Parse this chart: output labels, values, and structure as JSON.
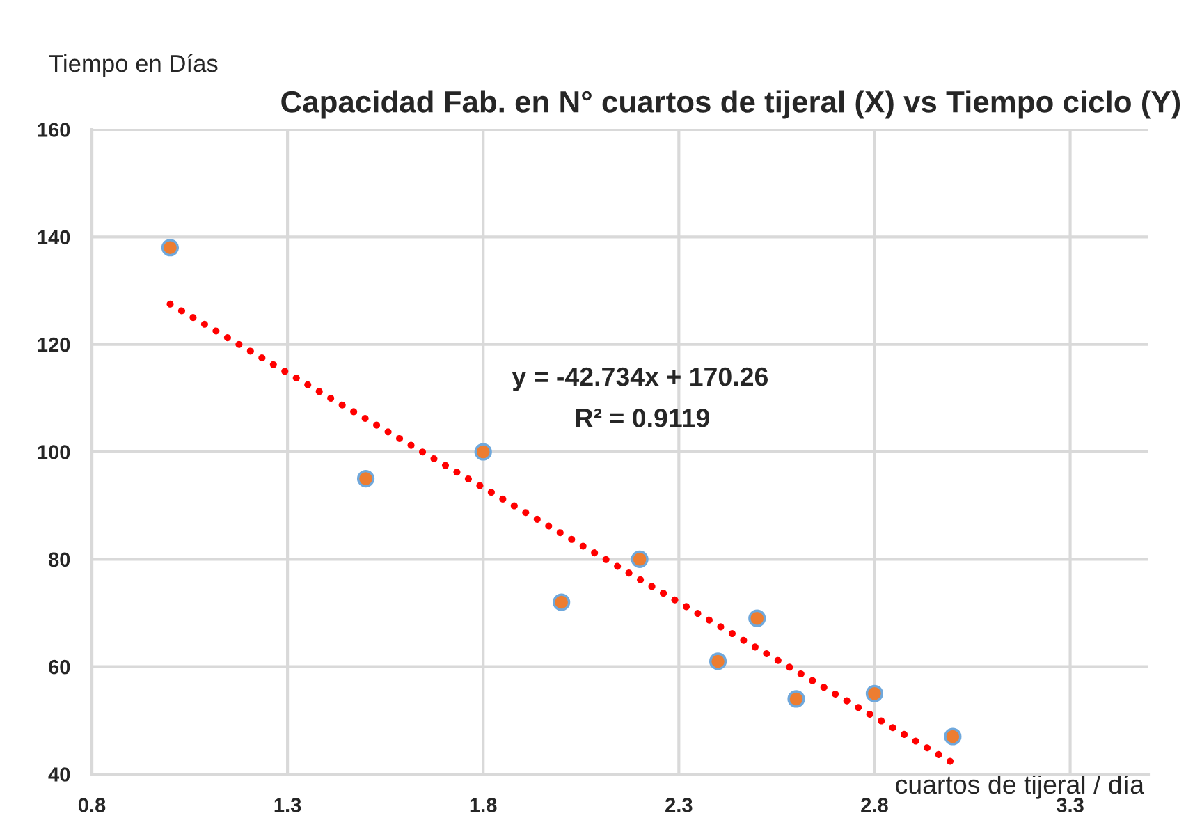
{
  "chart_data": {
    "type": "scatter",
    "title": "Capacidad Fab. en N° cuartos de tijeral (X) vs Tiempo ciclo (Y)",
    "xlabel": "cuartos de tijeral / día",
    "ylabel": "Tiempo en Días",
    "annotations": [
      "y = -42.734x + 170.26",
      "R² = 0.9119"
    ],
    "series": [
      {
        "color": "#ed7d31",
        "marker": "circle",
        "x": [
          1,
          1.5,
          1.8,
          2,
          2.2,
          2.4,
          2.5,
          2.6,
          2.8,
          3
        ],
        "values": [
          138,
          95,
          100,
          72,
          80,
          61,
          69,
          54,
          55,
          47
        ]
      },
      {
        "type": "line",
        "color": "#ff0000",
        "marker": "none",
        "line_style": "dotted",
        "x": [
          1,
          3
        ],
        "values": [
          127.5,
          42.1
        ]
      }
    ],
    "xlim": [
      0.8,
      3.5
    ],
    "xticks": [
      0.8,
      1.3,
      1.8,
      2.3,
      2.8,
      3.3
    ],
    "ylim": [
      40,
      160
    ],
    "yticks": [
      40,
      60,
      80,
      100,
      120,
      140,
      160
    ],
    "grid": true
  }
}
